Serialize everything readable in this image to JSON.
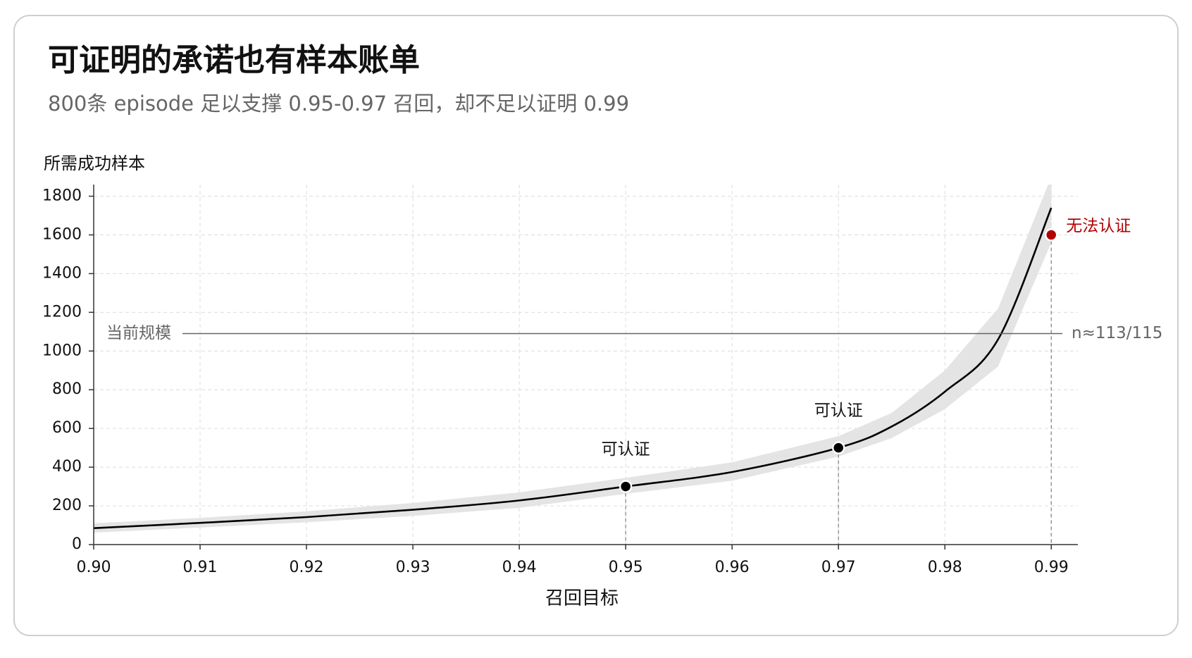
{
  "chart_data": {
    "type": "line",
    "title": "可证明的承诺也有样本账单",
    "subtitle": "800条 episode 足以支撑 0.95-0.97 召回，却不足以证明 0.99",
    "y_label": "所需成功样本",
    "x_label": "召回目标",
    "x": [
      0.9,
      0.91,
      0.92,
      0.93,
      0.94,
      0.95,
      0.96,
      0.97,
      0.975,
      0.98,
      0.985,
      0.99
    ],
    "values": [
      85,
      112,
      142,
      180,
      228,
      300,
      375,
      500,
      610,
      790,
      1060,
      1740
    ],
    "lower": [
      62,
      88,
      115,
      148,
      190,
      262,
      330,
      455,
      550,
      700,
      920,
      1560
    ],
    "upper": [
      110,
      138,
      172,
      215,
      270,
      345,
      425,
      560,
      680,
      900,
      1220,
      1900
    ],
    "color": "#000000",
    "band_color": "#e4e4e4",
    "xlim": [
      0.9,
      0.9925
    ],
    "ylim": [
      0,
      1860
    ],
    "xticks": [
      {
        "value": 0.9,
        "label": "0.90"
      },
      0.91,
      0.92,
      0.93,
      0.94,
      0.95,
      0.96,
      0.97,
      0.98,
      0.99
    ],
    "yticks": [
      0,
      200,
      400,
      600,
      800,
      1000,
      1200,
      1400,
      1600,
      1800
    ],
    "grid": true,
    "reference": {
      "value": 1090,
      "label_left": "当前规模",
      "label_right": "n≈113/115",
      "color": "#666666"
    },
    "annotations": [
      {
        "x": 0.95,
        "y": 300,
        "label": "可认证",
        "color": "#000000"
      },
      {
        "x": 0.97,
        "y": 500,
        "label": "可认证",
        "color": "#000000"
      },
      {
        "x": 0.99,
        "y": 1600,
        "label": "无法认证",
        "color": "#b30000"
      }
    ]
  }
}
